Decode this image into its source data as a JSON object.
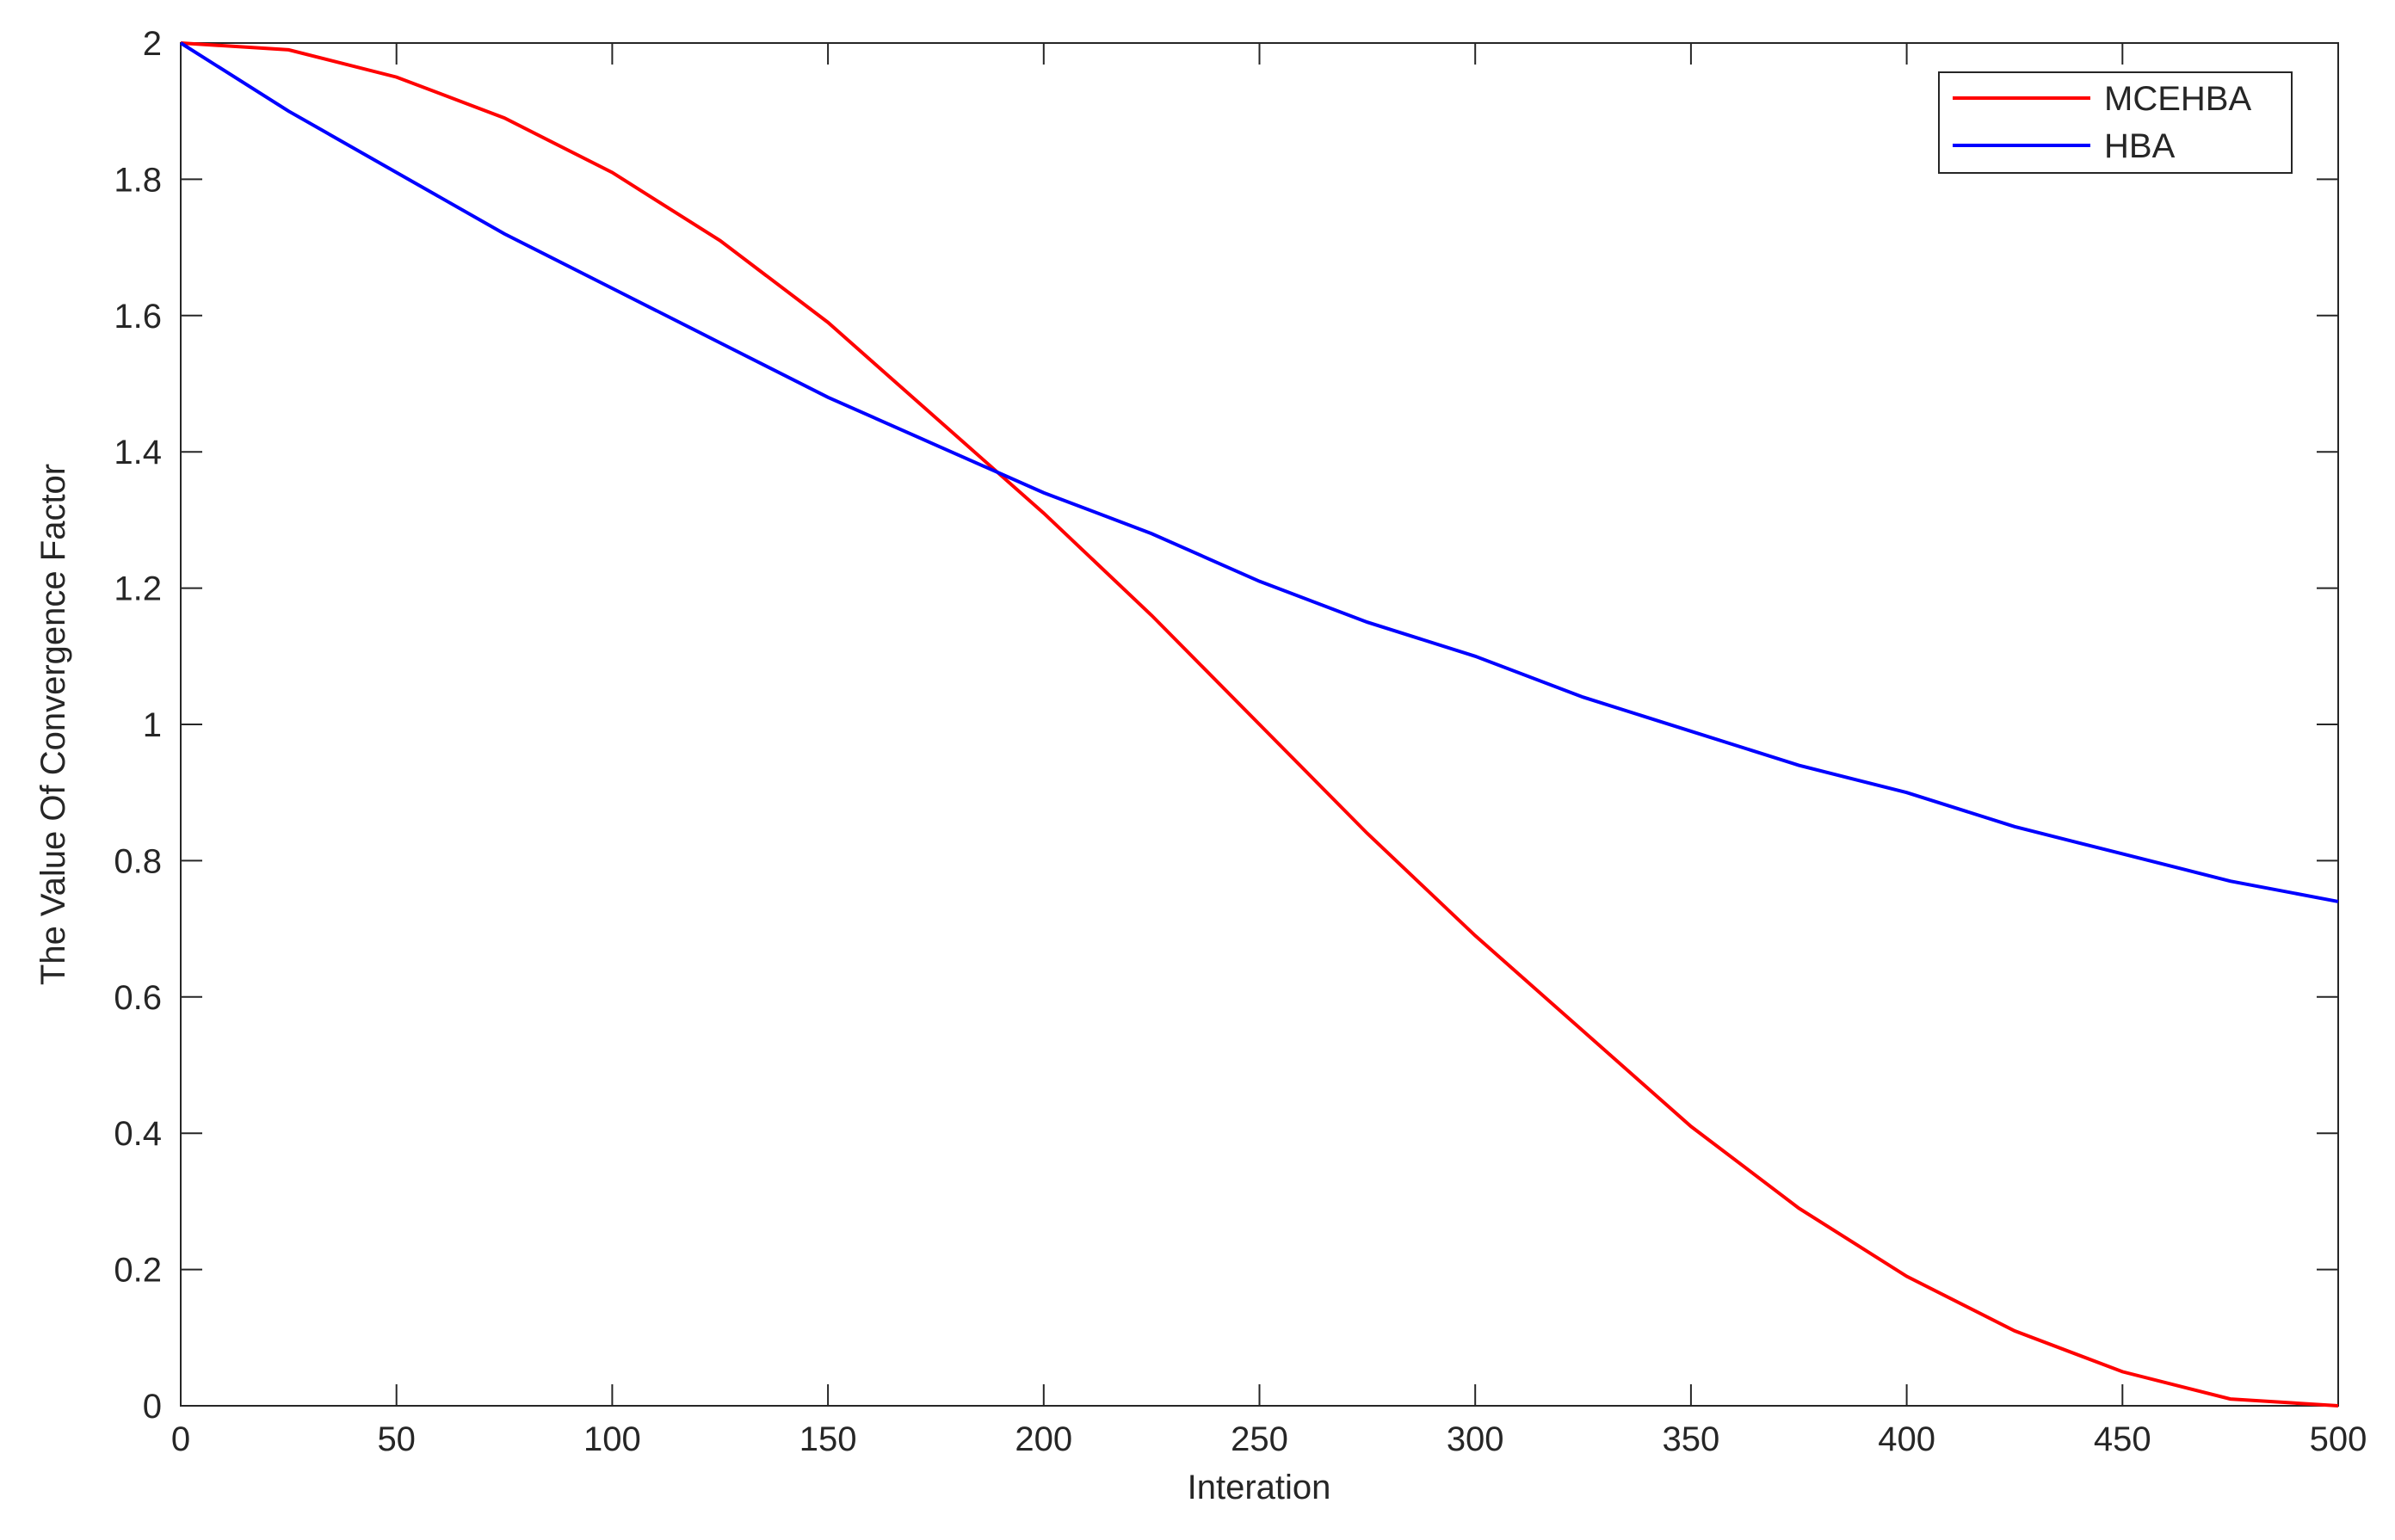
{
  "chart_data": {
    "type": "line",
    "x_label": "Interation",
    "y_label": "The Value Of Convergence Factor",
    "x": [
      0,
      25,
      50,
      75,
      100,
      125,
      150,
      175,
      200,
      225,
      250,
      275,
      300,
      325,
      350,
      375,
      400,
      425,
      450,
      475,
      500
    ],
    "series": [
      {
        "name": "MCEHBA",
        "color": "#ff0000",
        "values": [
          2,
          1.99,
          1.95,
          1.89,
          1.81,
          1.71,
          1.59,
          1.45,
          1.31,
          1.16,
          1,
          0.84,
          0.69,
          0.55,
          0.41,
          0.29,
          0.19,
          0.11,
          0.05,
          0.01,
          0
        ]
      },
      {
        "name": "HBA",
        "color": "#0000ff",
        "values": [
          2,
          1.9,
          1.81,
          1.72,
          1.64,
          1.56,
          1.48,
          1.41,
          1.34,
          1.28,
          1.21,
          1.15,
          1.1,
          1.04,
          0.99,
          0.94,
          0.9,
          0.85,
          0.81,
          0.77,
          0.74
        ]
      }
    ],
    "xlim": [
      0,
      500
    ],
    "xticks": [
      0,
      50,
      100,
      150,
      200,
      250,
      300,
      350,
      400,
      450,
      500
    ],
    "ylim": [
      0,
      2
    ],
    "yticks": [
      0,
      0.2,
      0.4,
      0.6,
      0.8,
      1,
      1.2,
      1.4,
      1.6,
      1.8,
      2
    ],
    "grid": false,
    "legend": "top-right"
  }
}
